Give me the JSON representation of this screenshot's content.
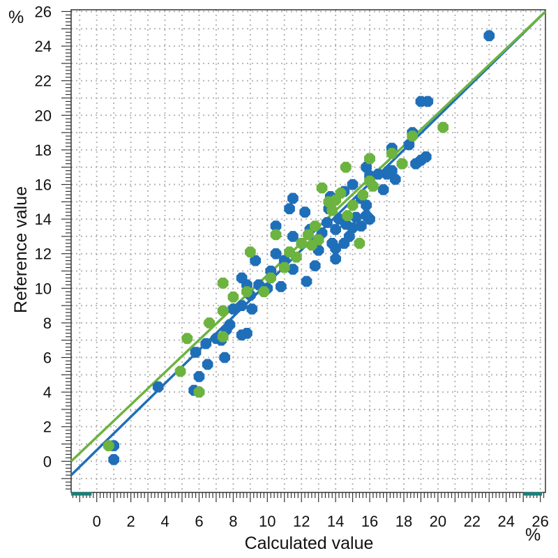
{
  "chart_data": {
    "type": "scatter",
    "xlabel": "Calculated value",
    "ylabel": "Reference value",
    "x_unit": "%",
    "y_unit": "%",
    "xlim": [
      -1.5,
      26.3
    ],
    "ylim": [
      -1.8,
      26.1
    ],
    "x_ticks": [
      0,
      2,
      4,
      6,
      8,
      10,
      12,
      14,
      16,
      18,
      20,
      22,
      24,
      26
    ],
    "y_ticks": [
      0,
      2,
      4,
      6,
      8,
      10,
      12,
      14,
      16,
      18,
      20,
      22,
      24,
      26
    ],
    "grid": true,
    "colors": {
      "series_blue": "#1f6fb8",
      "series_green": "#6cb33f",
      "marker_teal": "#1a7f7a"
    },
    "series": [
      {
        "color": "#1f6fb8",
        "points": [
          [
            1.0,
            0.9
          ],
          [
            1.0,
            0.1
          ],
          [
            3.6,
            4.3
          ],
          [
            5.7,
            4.1
          ],
          [
            6.0,
            4.0
          ],
          [
            6.0,
            4.9
          ],
          [
            6.5,
            5.6
          ],
          [
            5.8,
            6.3
          ],
          [
            6.4,
            6.8
          ],
          [
            7.0,
            7.1
          ],
          [
            7.3,
            7.0
          ],
          [
            7.6,
            7.6
          ],
          [
            7.8,
            7.9
          ],
          [
            7.5,
            6.0
          ],
          [
            8.5,
            7.3
          ],
          [
            8.8,
            7.4
          ],
          [
            8.0,
            8.8
          ],
          [
            8.5,
            9.0
          ],
          [
            9.1,
            8.8
          ],
          [
            9.0,
            9.6
          ],
          [
            9.5,
            10.2
          ],
          [
            10.0,
            10.0
          ],
          [
            10.8,
            10.1
          ],
          [
            8.5,
            10.6
          ],
          [
            8.8,
            10.2
          ],
          [
            9.3,
            11.6
          ],
          [
            10.2,
            11.0
          ],
          [
            10.5,
            12.0
          ],
          [
            11.0,
            11.6
          ],
          [
            11.5,
            11.1
          ],
          [
            10.5,
            13.6
          ],
          [
            11.5,
            13.0
          ],
          [
            11.3,
            14.6
          ],
          [
            11.5,
            15.2
          ],
          [
            12.3,
            10.4
          ],
          [
            12.8,
            11.3
          ],
          [
            12.5,
            13.4
          ],
          [
            12.2,
            14.4
          ],
          [
            13.0,
            12.2
          ],
          [
            13.2,
            13.2
          ],
          [
            13.5,
            13.8
          ],
          [
            13.6,
            14.6
          ],
          [
            13.8,
            12.6
          ],
          [
            14.0,
            11.7
          ],
          [
            14.0,
            12.3
          ],
          [
            14.0,
            13.4
          ],
          [
            14.2,
            14.0
          ],
          [
            14.5,
            12.6
          ],
          [
            14.8,
            13.0
          ],
          [
            14.6,
            13.7
          ],
          [
            15.0,
            13.5
          ],
          [
            15.2,
            14.1
          ],
          [
            15.5,
            13.6
          ],
          [
            15.8,
            14.2
          ],
          [
            13.7,
            15.3
          ],
          [
            14.5,
            15.6
          ],
          [
            15.0,
            16.0
          ],
          [
            15.5,
            15.2
          ],
          [
            15.8,
            14.8
          ],
          [
            16.0,
            14.0
          ],
          [
            16.0,
            16.5
          ],
          [
            15.8,
            17.0
          ],
          [
            16.0,
            17.5
          ],
          [
            16.5,
            16.6
          ],
          [
            16.8,
            15.7
          ],
          [
            17.0,
            16.6
          ],
          [
            17.3,
            16.8
          ],
          [
            17.5,
            16.3
          ],
          [
            17.3,
            18.1
          ],
          [
            17.9,
            17.2
          ],
          [
            18.3,
            18.3
          ],
          [
            18.5,
            19.0
          ],
          [
            18.7,
            17.2
          ],
          [
            19.0,
            17.4
          ],
          [
            19.3,
            17.6
          ],
          [
            19.0,
            20.8
          ],
          [
            19.4,
            20.8
          ],
          [
            23.0,
            24.6
          ]
        ]
      },
      {
        "color": "#6cb33f",
        "points": [
          [
            0.7,
            0.9
          ],
          [
            4.9,
            5.2
          ],
          [
            5.3,
            7.1
          ],
          [
            6.0,
            4.0
          ],
          [
            6.6,
            8.0
          ],
          [
            7.4,
            7.2
          ],
          [
            7.4,
            8.7
          ],
          [
            7.4,
            10.3
          ],
          [
            8.0,
            9.5
          ],
          [
            8.8,
            9.8
          ],
          [
            9.0,
            12.1
          ],
          [
            9.8,
            9.8
          ],
          [
            10.2,
            10.6
          ],
          [
            10.5,
            13.1
          ],
          [
            11.0,
            11.2
          ],
          [
            11.3,
            12.1
          ],
          [
            11.7,
            11.8
          ],
          [
            12.0,
            12.6
          ],
          [
            12.4,
            13.1
          ],
          [
            12.6,
            12.5
          ],
          [
            12.8,
            13.6
          ],
          [
            13.0,
            12.8
          ],
          [
            13.2,
            15.8
          ],
          [
            13.6,
            15.0
          ],
          [
            13.8,
            14.5
          ],
          [
            14.0,
            15.1
          ],
          [
            14.3,
            15.5
          ],
          [
            14.6,
            17.0
          ],
          [
            14.7,
            14.2
          ],
          [
            15.0,
            14.8
          ],
          [
            15.4,
            12.6
          ],
          [
            15.6,
            15.4
          ],
          [
            16.0,
            17.5
          ],
          [
            16.2,
            15.9
          ],
          [
            16.0,
            16.2
          ],
          [
            17.3,
            17.8
          ],
          [
            17.9,
            17.2
          ],
          [
            18.5,
            18.8
          ],
          [
            20.3,
            19.3
          ]
        ]
      }
    ],
    "fit_lines": [
      {
        "color": "#1f6fb8",
        "from": [
          -1.5,
          -0.8
        ],
        "to": [
          26.3,
          26.0
        ]
      },
      {
        "color": "#6cb33f",
        "from": [
          -1.5,
          0.0
        ],
        "to": [
          26.3,
          26.0
        ]
      }
    ],
    "axis_markers": [
      {
        "color": "#1a7f7a",
        "range": [
          -1.5,
          -0.3
        ]
      },
      {
        "color": "#1a7f7a",
        "range": [
          25.0,
          26.1
        ]
      }
    ]
  }
}
